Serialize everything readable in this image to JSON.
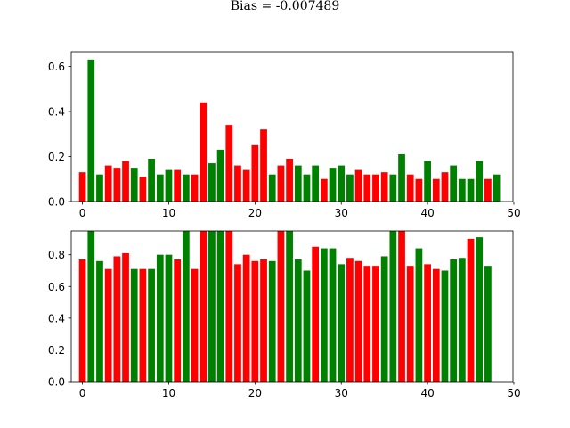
{
  "figure": {
    "title": "Bias = -0.007489"
  },
  "chart_data": [
    {
      "type": "bar",
      "title": "",
      "xlabel": "",
      "ylabel": "",
      "xlim": [
        -1.3,
        49.9
      ],
      "ylim": [
        0,
        0.665
      ],
      "xticks": [
        0,
        10,
        20,
        30,
        40,
        50
      ],
      "yticks": [
        0.0,
        0.2,
        0.4,
        0.6
      ],
      "ytick_labels": [
        "0.0",
        "0.2",
        "0.4",
        "0.6"
      ],
      "grid": false,
      "colors": {
        "red": "#ff0000",
        "green": "#008000"
      },
      "x": [
        0,
        1,
        2,
        3,
        4,
        5,
        6,
        7,
        8,
        9,
        10,
        11,
        12,
        13,
        14,
        15,
        16,
        17,
        18,
        19,
        20,
        21,
        22,
        23,
        24,
        25,
        26,
        27,
        28,
        29,
        30,
        31,
        32,
        33,
        34,
        35,
        36,
        37,
        38,
        39,
        40,
        41,
        42,
        43,
        44,
        45,
        46,
        47,
        48
      ],
      "values": [
        0.13,
        0.63,
        0.12,
        0.16,
        0.15,
        0.18,
        0.15,
        0.11,
        0.19,
        0.12,
        0.14,
        0.14,
        0.12,
        0.12,
        0.44,
        0.17,
        0.23,
        0.34,
        0.16,
        0.14,
        0.25,
        0.32,
        0.12,
        0.16,
        0.19,
        0.16,
        0.12,
        0.16,
        0.1,
        0.15,
        0.16,
        0.12,
        0.14,
        0.12,
        0.12,
        0.13,
        0.12,
        0.21,
        0.12,
        0.1,
        0.18,
        0.1,
        0.13,
        0.16,
        0.1,
        0.1,
        0.18,
        0.1,
        0.12
      ],
      "bar_colors": [
        "red",
        "green",
        "green",
        "red",
        "red",
        "red",
        "green",
        "red",
        "green",
        "green",
        "green",
        "red",
        "green",
        "red",
        "red",
        "green",
        "green",
        "red",
        "red",
        "red",
        "red",
        "red",
        "green",
        "red",
        "red",
        "green",
        "green",
        "green",
        "red",
        "green",
        "green",
        "green",
        "red",
        "red",
        "red",
        "red",
        "green",
        "green",
        "red",
        "red",
        "green",
        "red",
        "red",
        "green",
        "green",
        "green",
        "green",
        "red",
        "green"
      ]
    },
    {
      "type": "bar",
      "title": "",
      "xlabel": "",
      "ylabel": "",
      "xlim": [
        -1.3,
        49.9
      ],
      "ylim": [
        0,
        0.95
      ],
      "xticks": [
        0,
        10,
        20,
        30,
        40,
        50
      ],
      "yticks": [
        0.0,
        0.2,
        0.4,
        0.6,
        0.8
      ],
      "ytick_labels": [
        "0.0",
        "0.2",
        "0.4",
        "0.6",
        "0.8"
      ],
      "grid": false,
      "colors": {
        "red": "#ff0000",
        "green": "#008000"
      },
      "x": [
        0,
        1,
        2,
        3,
        4,
        5,
        6,
        7,
        8,
        9,
        10,
        11,
        12,
        13,
        14,
        15,
        16,
        17,
        18,
        19,
        20,
        21,
        22,
        23,
        24,
        25,
        26,
        27,
        28,
        29,
        30,
        31,
        32,
        33,
        34,
        35,
        36,
        37,
        38,
        39,
        40,
        41,
        42,
        43,
        44,
        45,
        46,
        47
      ],
      "values": [
        0.77,
        0.95,
        0.76,
        0.71,
        0.79,
        0.81,
        0.71,
        0.71,
        0.71,
        0.8,
        0.8,
        0.77,
        0.95,
        0.71,
        0.95,
        0.95,
        0.95,
        0.95,
        0.74,
        0.8,
        0.76,
        0.77,
        0.76,
        0.95,
        0.95,
        0.77,
        0.7,
        0.85,
        0.84,
        0.84,
        0.74,
        0.78,
        0.76,
        0.73,
        0.73,
        0.79,
        0.95,
        0.95,
        0.73,
        0.84,
        0.74,
        0.71,
        0.7,
        0.77,
        0.78,
        0.9,
        0.91,
        0.73
      ],
      "bar_colors": [
        "red",
        "green",
        "green",
        "red",
        "red",
        "red",
        "green",
        "red",
        "green",
        "green",
        "green",
        "red",
        "green",
        "red",
        "red",
        "green",
        "green",
        "red",
        "red",
        "red",
        "red",
        "red",
        "green",
        "red",
        "green",
        "green",
        "green",
        "red",
        "green",
        "green",
        "green",
        "red",
        "red",
        "red",
        "red",
        "green",
        "green",
        "red",
        "red",
        "green",
        "red",
        "red",
        "green",
        "green",
        "green",
        "red",
        "green",
        "green"
      ]
    }
  ]
}
